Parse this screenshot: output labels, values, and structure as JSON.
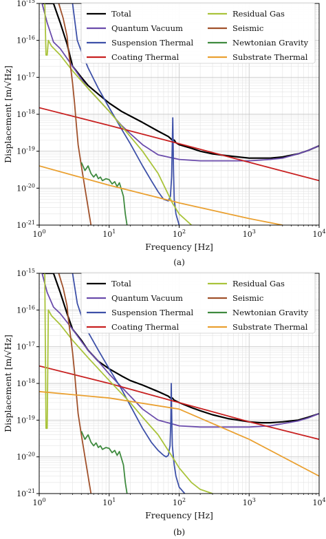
{
  "chart_data": [
    {
      "type": "line",
      "caption": "(a)",
      "xlabel": "Frequency [Hz]",
      "ylabel": "Displacement [m/√Hz]",
      "xscale": "log",
      "yscale": "log",
      "xlim": [
        1,
        10000
      ],
      "ylim": [
        1e-21,
        1e-15
      ],
      "grid": true,
      "legend_position": "top",
      "series": [
        {
          "name": "Total",
          "color": "#000000",
          "x": [
            1.1,
            1.3,
            1.6,
            2,
            2.5,
            3,
            4,
            5,
            7,
            10,
            15,
            20,
            30,
            50,
            70,
            80,
            82,
            85,
            90,
            100,
            150,
            200,
            300,
            500,
            700,
            1000,
            1500,
            2000,
            3000,
            5000,
            7000,
            10000
          ],
          "y": [
            1e-15,
            1e-15,
            1e-15,
            3e-16,
            8e-17,
            2e-17,
            1e-17,
            6e-18,
            3.5e-18,
            2e-18,
            1.2e-18,
            9e-19,
            6e-19,
            3.5e-19,
            2.5e-19,
            2e-19,
            2e-19,
            2e-19,
            1.7e-19,
            1.5e-19,
            1.2e-19,
            1e-19,
            8.5e-20,
            7.5e-20,
            7e-20,
            6.5e-20,
            6.5e-20,
            6.5e-20,
            7e-20,
            8.5e-20,
            1.05e-19,
            1.4e-19
          ]
        },
        {
          "name": "Quantum Vacuum",
          "color": "#6a4bab",
          "x": [
            1.1,
            1.3,
            1.6,
            2,
            3,
            4,
            5,
            7,
            10,
            15,
            20,
            30,
            50,
            100,
            200,
            500,
            1000,
            2000,
            3000,
            5000,
            7000,
            10000
          ],
          "y": [
            1e-15,
            3e-16,
            9e-17,
            6e-17,
            2e-17,
            9e-18,
            5e-18,
            2.5e-18,
            1.2e-18,
            5e-19,
            3e-19,
            1.5e-19,
            8e-20,
            6e-20,
            5.5e-20,
            5.5e-20,
            5.5e-20,
            6e-20,
            6.5e-20,
            8.5e-20,
            1.05e-19,
            1.4e-19
          ]
        },
        {
          "name": "Suspension Thermal",
          "color": "#3d50a8",
          "x": [
            3,
            3.5,
            4,
            5,
            7,
            10,
            15,
            20,
            30,
            40,
            50,
            60,
            70,
            75,
            78,
            80,
            81,
            82,
            83,
            85,
            90,
            100
          ],
          "y": [
            1e-15,
            1e-16,
            5e-17,
            1.8e-17,
            5e-18,
            1.5e-18,
            4e-19,
            1.6e-19,
            4e-20,
            1.6e-20,
            8e-21,
            5e-21,
            4.5e-21,
            6e-21,
            2e-20,
            2e-19,
            8e-19,
            2e-19,
            3e-20,
            5e-21,
            2e-21,
            1e-21
          ]
        },
        {
          "name": "Coating Thermal",
          "color": "#c82020",
          "x": [
            1,
            10,
            100,
            1000,
            10000
          ],
          "y": [
            1.5e-18,
            5e-19,
            1.6e-19,
            5e-20,
            1.6e-20
          ]
        },
        {
          "name": "Residual Gas",
          "color": "#a9c33a",
          "x": [
            1.2,
            1.25,
            1.3,
            1.35,
            1.5,
            2,
            3,
            5,
            10,
            20,
            30,
            50,
            80,
            100,
            150
          ],
          "y": [
            1e-15,
            4e-17,
            4e-17,
            1e-16,
            7e-17,
            4e-17,
            1.5e-17,
            5e-18,
            1.2e-18,
            2.5e-19,
            1e-19,
            2.5e-20,
            4e-21,
            2e-21,
            1e-21
          ]
        },
        {
          "name": "Seismic",
          "color": "#a0502a",
          "x": [
            1.9,
            2.2,
            2.5,
            2.6,
            2.8,
            3,
            3.2,
            3.4,
            3.6,
            4,
            4.5,
            5,
            5.5
          ],
          "y": [
            1e-15,
            4e-16,
            1.3e-16,
            6e-17,
            2e-17,
            7e-18,
            2e-18,
            5e-19,
            1.5e-19,
            4e-20,
            1e-20,
            3e-21,
            1e-21
          ]
        },
        {
          "name": "Newtonian Gravity",
          "color": "#3e8a3e",
          "x": [
            4,
            4.5,
            5,
            5.5,
            6,
            6.5,
            7,
            7.5,
            8,
            9,
            10,
            11,
            12,
            13,
            14,
            15,
            16,
            17,
            18
          ],
          "y": [
            5e-20,
            3e-20,
            4e-20,
            2.5e-20,
            2e-20,
            2.4e-20,
            1.8e-20,
            2e-20,
            1.6e-20,
            1.8e-20,
            1.7e-20,
            1.3e-20,
            1.5e-20,
            1.1e-20,
            1.4e-20,
            9e-21,
            6e-21,
            2e-21,
            1e-21
          ]
        },
        {
          "name": "Substrate Thermal",
          "color": "#eaa030",
          "x": [
            1,
            10,
            100,
            1000,
            3000
          ],
          "y": [
            4e-20,
            1.2e-20,
            4e-21,
            1.5e-21,
            1e-21
          ]
        }
      ]
    },
    {
      "type": "line",
      "caption": "(b)",
      "xlabel": "Frequency [Hz]",
      "ylabel": "Displacement [m/√Hz]",
      "xscale": "log",
      "yscale": "log",
      "xlim": [
        1,
        10000
      ],
      "ylim": [
        1e-21,
        1e-15
      ],
      "grid": true,
      "legend_position": "top",
      "series": [
        {
          "name": "Total",
          "color": "#000000",
          "x": [
            1.1,
            1.3,
            1.6,
            2,
            2.5,
            3,
            4,
            5,
            7,
            10,
            15,
            20,
            30,
            50,
            70,
            75,
            77,
            80,
            85,
            100,
            150,
            200,
            300,
            500,
            700,
            1000,
            1500,
            2000,
            3000,
            5000,
            7000,
            10000
          ],
          "y": [
            1e-15,
            1e-15,
            1e-15,
            3e-16,
            8e-17,
            3e-17,
            1.5e-17,
            8e-18,
            4e-18,
            2.5e-18,
            1.6e-18,
            1.2e-18,
            9e-19,
            6e-19,
            4.5e-19,
            4e-19,
            4e-19,
            4e-19,
            3.5e-19,
            3e-19,
            2.2e-19,
            1.8e-19,
            1.4e-19,
            1.1e-19,
            1e-19,
            9e-20,
            8.5e-20,
            8.5e-20,
            9e-20,
            1e-19,
            1.2e-19,
            1.5e-19
          ]
        },
        {
          "name": "Quantum Vacuum",
          "color": "#6a4bab",
          "x": [
            1.1,
            1.3,
            1.6,
            2,
            3,
            4,
            5,
            7,
            10,
            15,
            20,
            30,
            50,
            100,
            200,
            500,
            1000,
            2000,
            3000,
            5000,
            7000,
            10000
          ],
          "y": [
            1e-15,
            3e-16,
            1.2e-16,
            8e-17,
            3e-17,
            1.4e-17,
            8e-18,
            4e-18,
            1.8e-18,
            8e-19,
            4.5e-19,
            2e-19,
            1e-19,
            7e-20,
            6.5e-20,
            6.5e-20,
            6.5e-20,
            7e-20,
            8e-20,
            9.5e-20,
            1.15e-19,
            1.5e-19
          ]
        },
        {
          "name": "Suspension Thermal",
          "color": "#3d50a8",
          "x": [
            3,
            3.5,
            4,
            5,
            7,
            10,
            15,
            20,
            30,
            40,
            50,
            60,
            65,
            70,
            74,
            76,
            77,
            78,
            80,
            85,
            90,
            100,
            120
          ],
          "y": [
            1e-15,
            1.5e-16,
            7e-17,
            2.5e-17,
            8e-18,
            2.5e-18,
            7e-19,
            2.5e-19,
            6e-20,
            2.5e-20,
            1.5e-20,
            1.1e-20,
            1e-20,
            1.1e-20,
            2e-20,
            1e-19,
            1e-18,
            2e-19,
            2e-20,
            6e-21,
            3e-21,
            1.5e-21,
            1e-21
          ]
        },
        {
          "name": "Coating Thermal",
          "color": "#c82020",
          "x": [
            1,
            10,
            100,
            1000,
            10000
          ],
          "y": [
            3e-18,
            1e-18,
            3e-19,
            9e-20,
            3e-20
          ]
        },
        {
          "name": "Residual Gas",
          "color": "#a9c33a",
          "x": [
            1.2,
            1.25,
            1.3,
            1.35,
            1.5,
            2,
            3,
            5,
            10,
            20,
            30,
            50,
            80,
            100,
            150,
            200,
            300
          ],
          "y": [
            1e-15,
            6e-20,
            6e-20,
            1e-16,
            7e-17,
            4e-17,
            1.5e-17,
            5e-18,
            1.2e-18,
            3e-19,
            1.2e-19,
            4e-20,
            1e-20,
            5e-21,
            2e-21,
            1.3e-21,
            1e-21
          ]
        },
        {
          "name": "Seismic",
          "color": "#a0502a",
          "x": [
            1.9,
            2.2,
            2.5,
            2.6,
            2.8,
            3,
            3.2,
            3.4,
            3.6,
            4,
            4.5,
            5,
            5.5
          ],
          "y": [
            1e-15,
            4e-16,
            1.3e-16,
            6e-17,
            2e-17,
            7e-18,
            2e-18,
            5e-19,
            1.5e-19,
            4e-20,
            1e-20,
            3e-21,
            1e-21
          ]
        },
        {
          "name": "Newtonian Gravity",
          "color": "#3e8a3e",
          "x": [
            4,
            4.5,
            5,
            5.5,
            6,
            6.5,
            7,
            7.5,
            8,
            9,
            10,
            11,
            12,
            13,
            14,
            15,
            16,
            17,
            18
          ],
          "y": [
            5e-20,
            3e-20,
            4e-20,
            2.5e-20,
            2e-20,
            2.4e-20,
            1.8e-20,
            2e-20,
            1.6e-20,
            1.8e-20,
            1.7e-20,
            1.3e-20,
            1.5e-20,
            1.1e-20,
            1.4e-20,
            9e-21,
            6e-21,
            2e-21,
            1e-21
          ]
        },
        {
          "name": "Substrate Thermal",
          "color": "#eaa030",
          "x": [
            1,
            10,
            100,
            1000,
            10000
          ],
          "y": [
            6e-19,
            4e-19,
            2e-19,
            3e-20,
            3e-21
          ]
        }
      ]
    }
  ]
}
